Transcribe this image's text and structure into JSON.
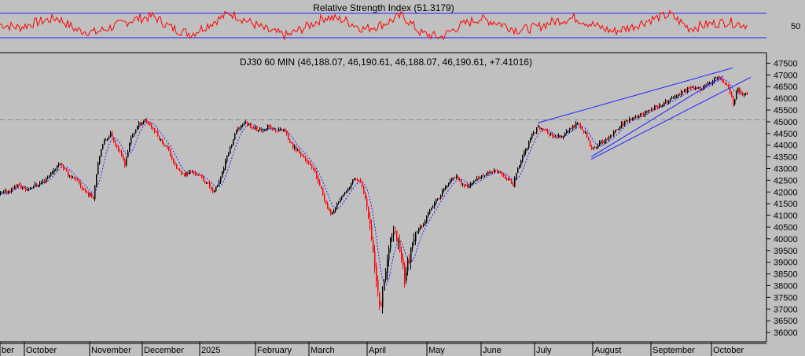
{
  "colors": {
    "background": "#c0c0c0",
    "up_candle": "#000000",
    "down_candle": "#ff0000",
    "rsi_line": "#ff0000",
    "rsi_bands": "#2020ff",
    "trendlines": "#2020ff",
    "moving_average": "#2020ff",
    "reference_line": "#888888"
  },
  "chart_data": [
    {
      "type": "line",
      "title": "Relative Strength Index (51.3179)",
      "series": [],
      "y_ticks": [
        "50"
      ],
      "ylim": [
        20,
        80
      ],
      "band_levels": [
        70,
        30
      ],
      "values_approx": [
        52,
        48,
        55,
        60,
        45,
        42,
        50,
        58,
        62,
        47,
        40,
        53,
        66,
        55,
        44,
        38,
        49,
        61,
        57,
        46,
        52,
        63,
        41,
        36,
        50,
        59,
        54,
        45,
        48,
        56,
        60,
        51,
        43,
        49,
        58,
        64,
        47,
        52,
        55,
        51
      ]
    },
    {
      "type": "candlestick",
      "title": "DJ30 60 MIN (46,188.07, 46,190.61, 46,188.07, 46,190.61, +7.41016)",
      "x_labels": [
        "ber",
        "October",
        "November",
        "December",
        "2025",
        "February",
        "March",
        "April",
        "May",
        "June",
        "July",
        "August",
        "September",
        "October"
      ],
      "y_ticks": [
        "47500",
        "47000",
        "46500",
        "46000",
        "45500",
        "45000",
        "44500",
        "44000",
        "43500",
        "43000",
        "42500",
        "42000",
        "41500",
        "41000",
        "40500",
        "40000",
        "39500",
        "39000",
        "38500",
        "38000",
        "37500",
        "37000",
        "36500",
        "36000"
      ],
      "ylim": [
        35700,
        47850
      ],
      "reference_line": 45080,
      "trend_series_approx": [
        [
          0,
          41900
        ],
        [
          10,
          42050
        ],
        [
          22,
          42300
        ],
        [
          32,
          42100
        ],
        [
          44,
          42300
        ],
        [
          55,
          42450
        ],
        [
          65,
          42850
        ],
        [
          76,
          43250
        ],
        [
          86,
          42750
        ],
        [
          98,
          42450
        ],
        [
          108,
          42000
        ],
        [
          118,
          41800
        ],
        [
          124,
          43300
        ],
        [
          132,
          44200
        ],
        [
          140,
          44500
        ],
        [
          150,
          43800
        ],
        [
          158,
          43200
        ],
        [
          166,
          44300
        ],
        [
          176,
          44900
        ],
        [
          184,
          45100
        ],
        [
          192,
          44800
        ],
        [
          204,
          44200
        ],
        [
          214,
          43800
        ],
        [
          222,
          43100
        ],
        [
          232,
          42700
        ],
        [
          242,
          42900
        ],
        [
          252,
          42700
        ],
        [
          262,
          42400
        ],
        [
          272,
          42000
        ],
        [
          280,
          42600
        ],
        [
          290,
          43700
        ],
        [
          300,
          44600
        ],
        [
          310,
          45000
        ],
        [
          320,
          44800
        ],
        [
          330,
          44600
        ],
        [
          340,
          44800
        ],
        [
          350,
          44600
        ],
        [
          360,
          44700
        ],
        [
          370,
          44000
        ],
        [
          380,
          43700
        ],
        [
          390,
          43300
        ],
        [
          400,
          42800
        ],
        [
          410,
          41900
        ],
        [
          420,
          41000
        ],
        [
          430,
          41600
        ],
        [
          440,
          42000
        ],
        [
          450,
          42600
        ],
        [
          458,
          42400
        ],
        [
          466,
          41600
        ],
        [
          472,
          40200
        ],
        [
          478,
          38200
        ],
        [
          483,
          37100
        ],
        [
          488,
          38300
        ],
        [
          494,
          39500
        ],
        [
          500,
          40400
        ],
        [
          508,
          39600
        ],
        [
          514,
          38400
        ],
        [
          520,
          39200
        ],
        [
          530,
          40300
        ],
        [
          540,
          40800
        ],
        [
          550,
          41400
        ],
        [
          560,
          41900
        ],
        [
          570,
          42400
        ],
        [
          580,
          42700
        ],
        [
          590,
          42200
        ],
        [
          600,
          42400
        ],
        [
          610,
          42600
        ],
        [
          620,
          42800
        ],
        [
          630,
          42900
        ],
        [
          640,
          42700
        ],
        [
          652,
          42300
        ],
        [
          660,
          43200
        ],
        [
          668,
          43800
        ],
        [
          676,
          44400
        ],
        [
          684,
          44800
        ],
        [
          694,
          44600
        ],
        [
          704,
          44300
        ],
        [
          714,
          44400
        ],
        [
          724,
          44700
        ],
        [
          734,
          44900
        ],
        [
          744,
          44500
        ],
        [
          752,
          43800
        ],
        [
          760,
          44000
        ],
        [
          770,
          44200
        ],
        [
          780,
          44500
        ],
        [
          790,
          44900
        ],
        [
          800,
          45100
        ],
        [
          810,
          45200
        ],
        [
          820,
          45400
        ],
        [
          830,
          45600
        ],
        [
          840,
          45700
        ],
        [
          850,
          45900
        ],
        [
          860,
          46100
        ],
        [
          870,
          46300
        ],
        [
          880,
          46500
        ],
        [
          890,
          46400
        ],
        [
          900,
          46600
        ],
        [
          908,
          46800
        ],
        [
          914,
          46900
        ],
        [
          920,
          46700
        ],
        [
          926,
          46500
        ],
        [
          932,
          45800
        ],
        [
          938,
          46400
        ],
        [
          944,
          46200
        ],
        [
          950,
          46190
        ]
      ],
      "trendlines_approx": [
        [
          [
            684,
            44950
          ],
          [
            932,
            47300
          ]
        ],
        [
          [
            752,
            43400
          ],
          [
            955,
            46900
          ]
        ],
        [
          [
            752,
            43500
          ],
          [
            920,
            46950
          ]
        ]
      ]
    }
  ]
}
